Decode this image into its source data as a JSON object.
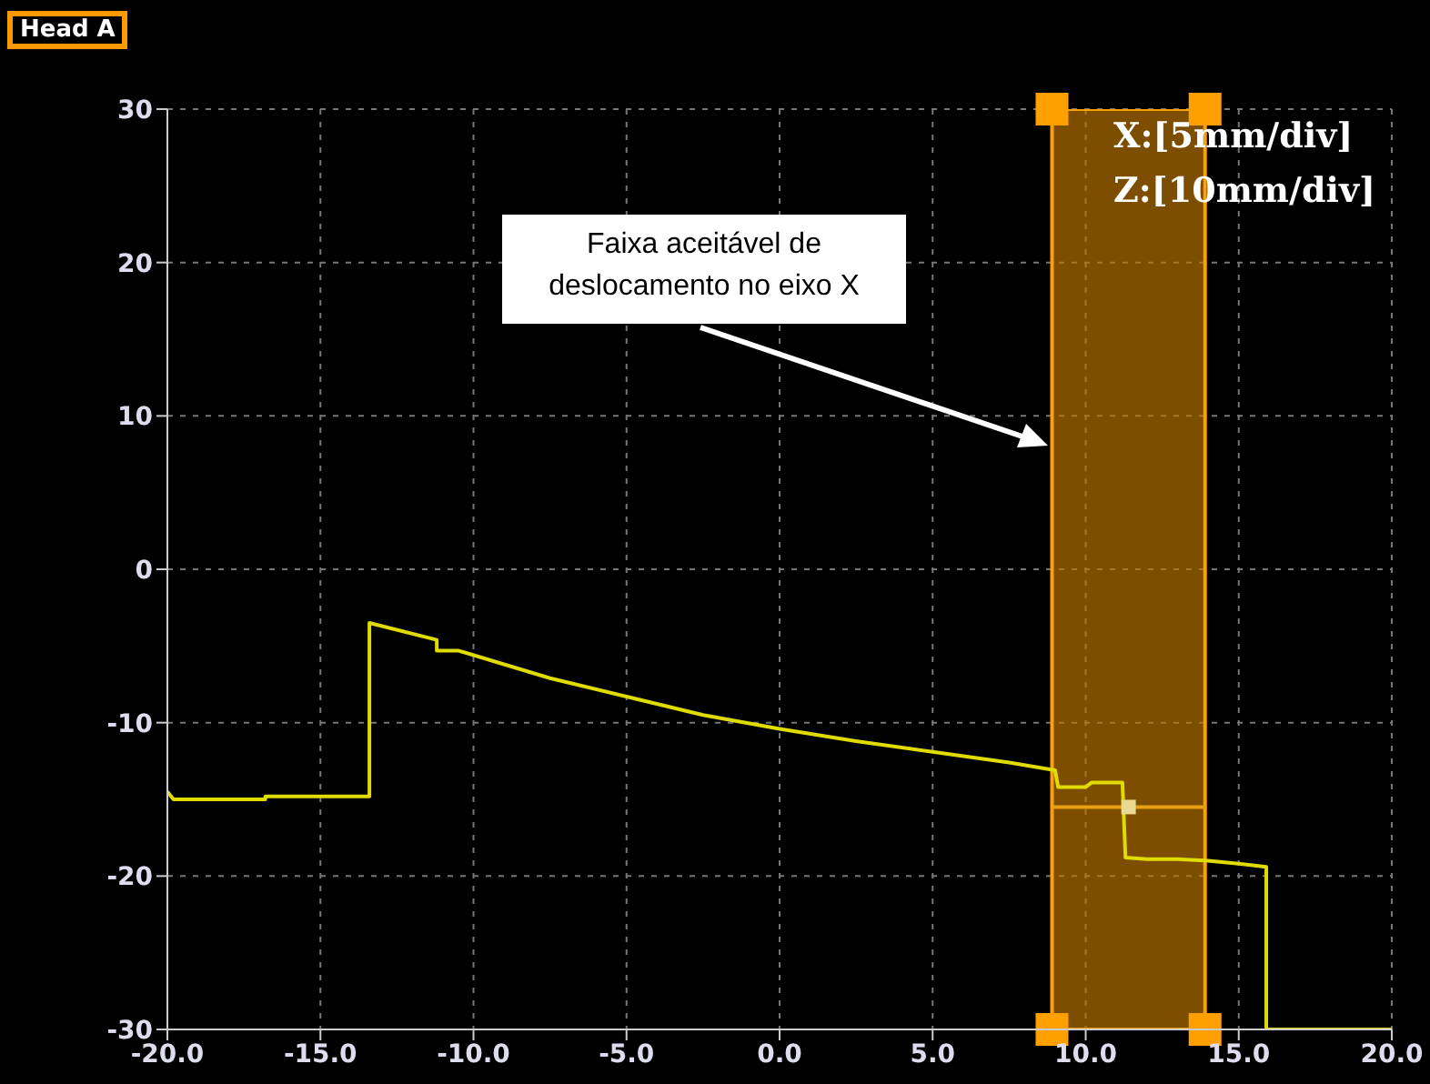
{
  "chart_data": {
    "type": "line",
    "title": "Head A",
    "xlim": [
      -20,
      20
    ],
    "ylim": [
      -30,
      30
    ],
    "xticks": [
      {
        "value": -20,
        "label": "-20.0"
      },
      {
        "value": -15,
        "label": "-15.0"
      },
      {
        "value": -10,
        "label": "-10.0"
      },
      {
        "value": -5,
        "label": "-5.0"
      },
      {
        "value": 0,
        "label": "0.0"
      },
      {
        "value": 5,
        "label": "5.0"
      },
      {
        "value": 10,
        "label": "10.0"
      },
      {
        "value": 15,
        "label": "15.0"
      },
      {
        "value": 20,
        "label": "20.0"
      }
    ],
    "yticks": [
      -30,
      -20,
      -10,
      0,
      10,
      20,
      30
    ],
    "grid": true,
    "marker": "none",
    "line_style": "solid",
    "series": [
      {
        "color": "#e0dc00",
        "x": [
          -20,
          -19.8,
          -18,
          -16.8,
          -16.8,
          -13.4,
          -13.4,
          -11.2,
          -11.2,
          -10.5,
          -7.5,
          -5,
          -2.5,
          0,
          2.5,
          5,
          7.5,
          9,
          9.1,
          10,
          10.2,
          11.2,
          11.3,
          12,
          13,
          14,
          15,
          15.9,
          15.9,
          20
        ],
        "values": [
          -14.5,
          -15,
          -15,
          -15,
          -14.8,
          -14.8,
          -3.5,
          -4.6,
          -5.3,
          -5.3,
          -7.1,
          -8.3,
          -9.5,
          -10.4,
          -11.2,
          -11.9,
          -12.6,
          -13.1,
          -14.2,
          -14.2,
          -13.9,
          -13.9,
          -18.8,
          -18.9,
          -18.9,
          -19,
          -19.2,
          -19.4,
          -30,
          -30
        ]
      },
      {
        "color": "#e8a010",
        "x": [
          8.9,
          13.9
        ],
        "values": [
          -15.5,
          -15.5
        ]
      },
      {
        "type": "scatter",
        "color": "#e8d890",
        "marker": "square",
        "x": [
          11.4
        ],
        "values": [
          -15.5
        ]
      }
    ],
    "bands": [
      {
        "axis": "x",
        "from": 8.9,
        "to": 13.9,
        "color": "#c07800"
      }
    ],
    "annotations": [
      "X:[5mm/div]",
      "Z:[10mm/div]",
      "Faixa aceitável de deslocamento no eixo X"
    ]
  }
}
